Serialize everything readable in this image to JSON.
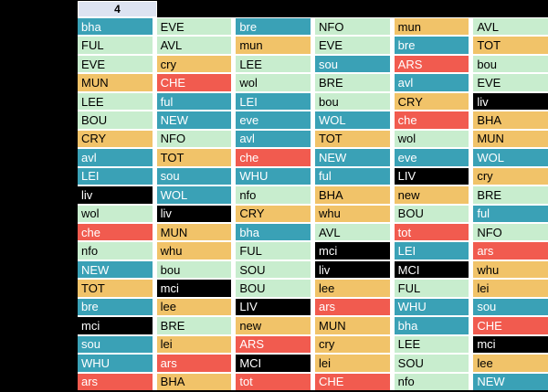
{
  "header": {
    "label": "4"
  },
  "palette": {
    "teal": {
      "bg": "#3AA1B6",
      "text": "#FFFFFF"
    },
    "green": {
      "bg": "#C8EDCE",
      "text": "#000000"
    },
    "orange": {
      "bg": "#F1C369",
      "text": "#000000"
    },
    "red": {
      "bg": "#F15B4F",
      "text": "#FFFFFF"
    },
    "black": {
      "bg": "#000000",
      "text": "#FFFFFF"
    },
    "header": {
      "bg": "#DDE3F1",
      "text": "#000000"
    }
  },
  "grid": {
    "columns": [
      {
        "cells": [
          {
            "label": "bha",
            "color": "teal"
          },
          {
            "label": "FUL",
            "color": "green"
          },
          {
            "label": "EVE",
            "color": "green"
          },
          {
            "label": "MUN",
            "color": "orange"
          },
          {
            "label": "LEE",
            "color": "green"
          },
          {
            "label": "BOU",
            "color": "green"
          },
          {
            "label": "CRY",
            "color": "orange"
          },
          {
            "label": "avl",
            "color": "teal"
          },
          {
            "label": "LEI",
            "color": "teal"
          },
          {
            "label": "liv",
            "color": "black"
          },
          {
            "label": "wol",
            "color": "green"
          },
          {
            "label": "che",
            "color": "red"
          },
          {
            "label": "nfo",
            "color": "green"
          },
          {
            "label": "NEW",
            "color": "teal"
          },
          {
            "label": "TOT",
            "color": "orange"
          },
          {
            "label": "bre",
            "color": "teal"
          },
          {
            "label": "mci",
            "color": "black"
          },
          {
            "label": "sou",
            "color": "teal"
          },
          {
            "label": "WHU",
            "color": "teal"
          },
          {
            "label": "ars",
            "color": "red"
          }
        ]
      },
      {
        "cells": [
          {
            "label": "EVE",
            "color": "green"
          },
          {
            "label": "AVL",
            "color": "green"
          },
          {
            "label": "cry",
            "color": "orange"
          },
          {
            "label": "CHE",
            "color": "red"
          },
          {
            "label": "ful",
            "color": "teal"
          },
          {
            "label": "NEW",
            "color": "teal"
          },
          {
            "label": "NFO",
            "color": "green"
          },
          {
            "label": "TOT",
            "color": "orange"
          },
          {
            "label": "sou",
            "color": "teal"
          },
          {
            "label": "WOL",
            "color": "teal"
          },
          {
            "label": "liv",
            "color": "black"
          },
          {
            "label": "MUN",
            "color": "orange"
          },
          {
            "label": "whu",
            "color": "orange"
          },
          {
            "label": "bou",
            "color": "green"
          },
          {
            "label": "mci",
            "color": "black"
          },
          {
            "label": "lee",
            "color": "orange"
          },
          {
            "label": "BRE",
            "color": "green"
          },
          {
            "label": "lei",
            "color": "orange"
          },
          {
            "label": "ars",
            "color": "red"
          },
          {
            "label": "BHA",
            "color": "orange"
          }
        ]
      },
      {
        "cells": [
          {
            "label": "bre",
            "color": "teal"
          },
          {
            "label": "mun",
            "color": "orange"
          },
          {
            "label": "LEE",
            "color": "green"
          },
          {
            "label": "wol",
            "color": "green"
          },
          {
            "label": "LEI",
            "color": "teal"
          },
          {
            "label": "eve",
            "color": "teal"
          },
          {
            "label": "avl",
            "color": "teal"
          },
          {
            "label": "che",
            "color": "red"
          },
          {
            "label": "WHU",
            "color": "teal"
          },
          {
            "label": "nfo",
            "color": "green"
          },
          {
            "label": "CRY",
            "color": "orange"
          },
          {
            "label": "bha",
            "color": "teal"
          },
          {
            "label": "FUL",
            "color": "green"
          },
          {
            "label": "SOU",
            "color": "green"
          },
          {
            "label": "BOU",
            "color": "green"
          },
          {
            "label": "LIV",
            "color": "black"
          },
          {
            "label": "new",
            "color": "orange"
          },
          {
            "label": "ARS",
            "color": "red"
          },
          {
            "label": "MCI",
            "color": "black"
          },
          {
            "label": "tot",
            "color": "red"
          }
        ]
      },
      {
        "cells": [
          {
            "label": "NFO",
            "color": "green"
          },
          {
            "label": "EVE",
            "color": "green"
          },
          {
            "label": "sou",
            "color": "teal"
          },
          {
            "label": "BRE",
            "color": "green"
          },
          {
            "label": "bou",
            "color": "green"
          },
          {
            "label": "WOL",
            "color": "teal"
          },
          {
            "label": "TOT",
            "color": "orange"
          },
          {
            "label": "NEW",
            "color": "teal"
          },
          {
            "label": "ful",
            "color": "teal"
          },
          {
            "label": "BHA",
            "color": "orange"
          },
          {
            "label": "whu",
            "color": "orange"
          },
          {
            "label": "AVL",
            "color": "green"
          },
          {
            "label": "mci",
            "color": "black"
          },
          {
            "label": "liv",
            "color": "black"
          },
          {
            "label": "lee",
            "color": "orange"
          },
          {
            "label": "ars",
            "color": "red"
          },
          {
            "label": "MUN",
            "color": "orange"
          },
          {
            "label": "cry",
            "color": "orange"
          },
          {
            "label": "lei",
            "color": "orange"
          },
          {
            "label": "CHE",
            "color": "red"
          }
        ]
      },
      {
        "cells": [
          {
            "label": "mun",
            "color": "orange"
          },
          {
            "label": "bre",
            "color": "teal"
          },
          {
            "label": "ARS",
            "color": "red"
          },
          {
            "label": "avl",
            "color": "teal"
          },
          {
            "label": "CRY",
            "color": "orange"
          },
          {
            "label": "che",
            "color": "red"
          },
          {
            "label": "wol",
            "color": "green"
          },
          {
            "label": "eve",
            "color": "teal"
          },
          {
            "label": "LIV",
            "color": "black"
          },
          {
            "label": "new",
            "color": "orange"
          },
          {
            "label": "BOU",
            "color": "green"
          },
          {
            "label": "tot",
            "color": "red"
          },
          {
            "label": "LEI",
            "color": "teal"
          },
          {
            "label": "MCI",
            "color": "black"
          },
          {
            "label": "FUL",
            "color": "green"
          },
          {
            "label": "WHU",
            "color": "teal"
          },
          {
            "label": "bha",
            "color": "teal"
          },
          {
            "label": "LEE",
            "color": "green"
          },
          {
            "label": "SOU",
            "color": "green"
          },
          {
            "label": "nfo",
            "color": "green"
          }
        ]
      },
      {
        "cells": [
          {
            "label": "AVL",
            "color": "green"
          },
          {
            "label": "TOT",
            "color": "orange"
          },
          {
            "label": "bou",
            "color": "green"
          },
          {
            "label": "EVE",
            "color": "green"
          },
          {
            "label": "liv",
            "color": "black"
          },
          {
            "label": "BHA",
            "color": "orange"
          },
          {
            "label": "MUN",
            "color": "orange"
          },
          {
            "label": "WOL",
            "color": "teal"
          },
          {
            "label": "cry",
            "color": "orange"
          },
          {
            "label": "BRE",
            "color": "green"
          },
          {
            "label": "ful",
            "color": "teal"
          },
          {
            "label": "NFO",
            "color": "green"
          },
          {
            "label": "ars",
            "color": "red"
          },
          {
            "label": "whu",
            "color": "orange"
          },
          {
            "label": "lei",
            "color": "orange"
          },
          {
            "label": "sou",
            "color": "teal"
          },
          {
            "label": "CHE",
            "color": "red"
          },
          {
            "label": "mci",
            "color": "black"
          },
          {
            "label": "lee",
            "color": "orange"
          },
          {
            "label": "NEW",
            "color": "teal"
          }
        ]
      }
    ]
  }
}
